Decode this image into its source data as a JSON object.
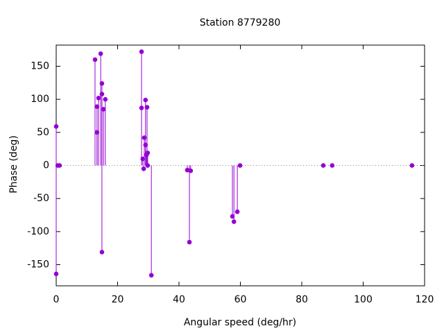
{
  "chart_data": {
    "type": "stem",
    "title": "Station 8779280",
    "x_label": "Angular speed (deg/hr)",
    "y_label": "Phase (deg)",
    "x": [
      0,
      0,
      0.5,
      1.1,
      12.65,
      13.3,
      13.3,
      13.8,
      14.5,
      14.9,
      14.9,
      14.9,
      15.4,
      16.0,
      27.8,
      27.8,
      28.2,
      28.5,
      28.7,
      29.1,
      29.1,
      29.4,
      29.6,
      29.8,
      29.8,
      31.0,
      42.7,
      43.4,
      43.8,
      57.4,
      57.9,
      59.0,
      59.9,
      87.0,
      89.9,
      115.9
    ],
    "values": [
      -164,
      59,
      0,
      0,
      160,
      89,
      50,
      102,
      169,
      124,
      108,
      -131,
      85,
      100,
      172,
      87,
      10,
      -5,
      42,
      99,
      31,
      16,
      88,
      0,
      19,
      -166,
      -7,
      -116,
      -8,
      -77,
      -85,
      -70,
      0,
      0,
      0,
      0
    ],
    "color": "#9400d3",
    "xlim": [
      0,
      120
    ],
    "xticks": [
      0,
      20,
      40,
      60,
      80,
      100,
      120
    ],
    "ylim": [
      -182,
      182
    ],
    "yticks": [
      -150,
      -100,
      -50,
      0,
      50,
      100,
      150
    ],
    "zero_line": true
  }
}
